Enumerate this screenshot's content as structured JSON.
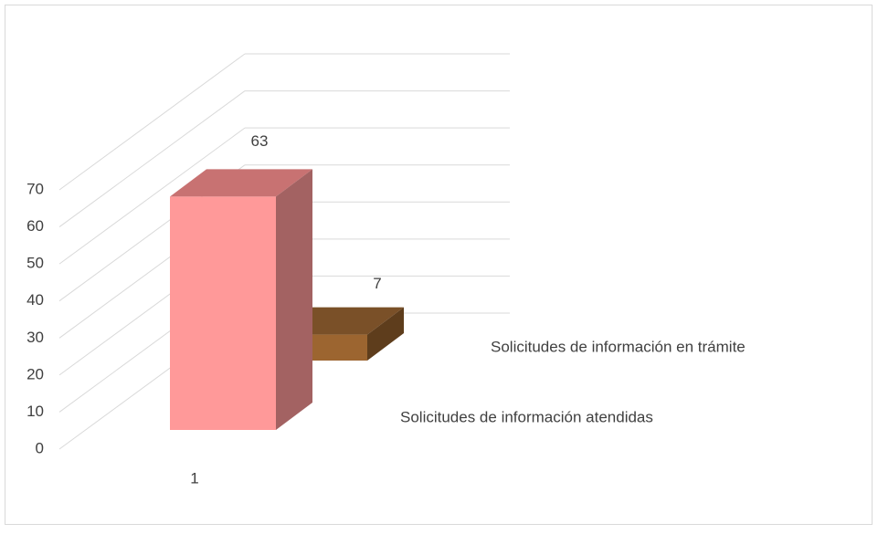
{
  "chart_data": {
    "type": "bar3d",
    "categories": [
      "1"
    ],
    "series": [
      {
        "name": "Solicitudes de información atendidas",
        "color": "#ff9999",
        "values": [
          63
        ]
      },
      {
        "name": "Solicitudes de información en trámite",
        "color": "#9c6530",
        "values": [
          7
        ]
      }
    ],
    "ylim": [
      0,
      70
    ],
    "yticks": [
      0,
      10,
      20,
      30,
      40,
      50,
      60,
      70
    ],
    "grid": true
  }
}
